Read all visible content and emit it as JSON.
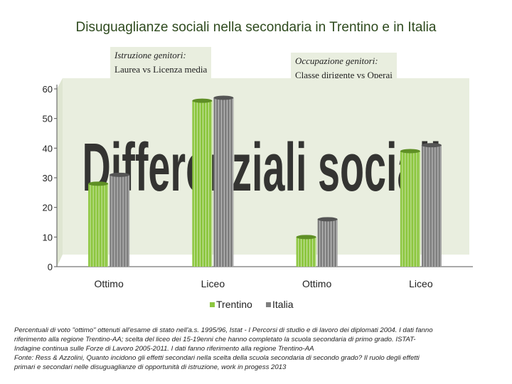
{
  "title": "Disuguaglianze sociali nella secondaria in Trentino e in Italia",
  "group_labels": [
    {
      "caption": "Istruzione genitori:",
      "text": "Laurea vs Licenza media"
    },
    {
      "caption": "Occupazione genitori:",
      "text": "Classe dirigente vs Operai"
    }
  ],
  "overlay_text": "Differenziali sociali",
  "source_lines": [
    "Percentuali di voto \"ottimo\" ottenuti all'esame di stato nell'a.s. 1995/96, Istat - I Percorsi di studio e di lavoro dei diplomati 2004. I dati fanno",
    "riferimento alla regione Trentino-AA; scelta del liceo dei 15-19enni che hanno completato la scuola secondaria di primo grado. ISTAT-",
    "Indagine continua sulle Forze di Lavoro 2005-2011. I dati fanno riferimento alla regione Trentino-AA",
    "Fonte: Ress & Azzolini, Quanto incidono gli effetti secondari nella scelta della scuola secondaria di secondo grado? Il ruolo degli effetti",
    "primari e secondari nelle disuguaglianze di opportunità di istruzione, work in progess 2013"
  ],
  "colors": {
    "Trentino": "#8cc63f",
    "Italia": "#7f7f7f",
    "panel": "#e9eedf",
    "title": "#2e4a1e"
  },
  "chart_data": {
    "type": "bar",
    "categories": [
      "Ottimo",
      "Liceo",
      "Ottimo",
      "Liceo"
    ],
    "series": [
      {
        "name": "Trentino",
        "values": [
          28,
          56,
          10,
          39
        ]
      },
      {
        "name": "Italia",
        "values": [
          31,
          57,
          16,
          41
        ]
      }
    ],
    "yticks": [
      0,
      10,
      20,
      30,
      40,
      50,
      60
    ],
    "ylim": [
      0,
      60
    ],
    "legend_position": "bottom",
    "grid": false
  }
}
